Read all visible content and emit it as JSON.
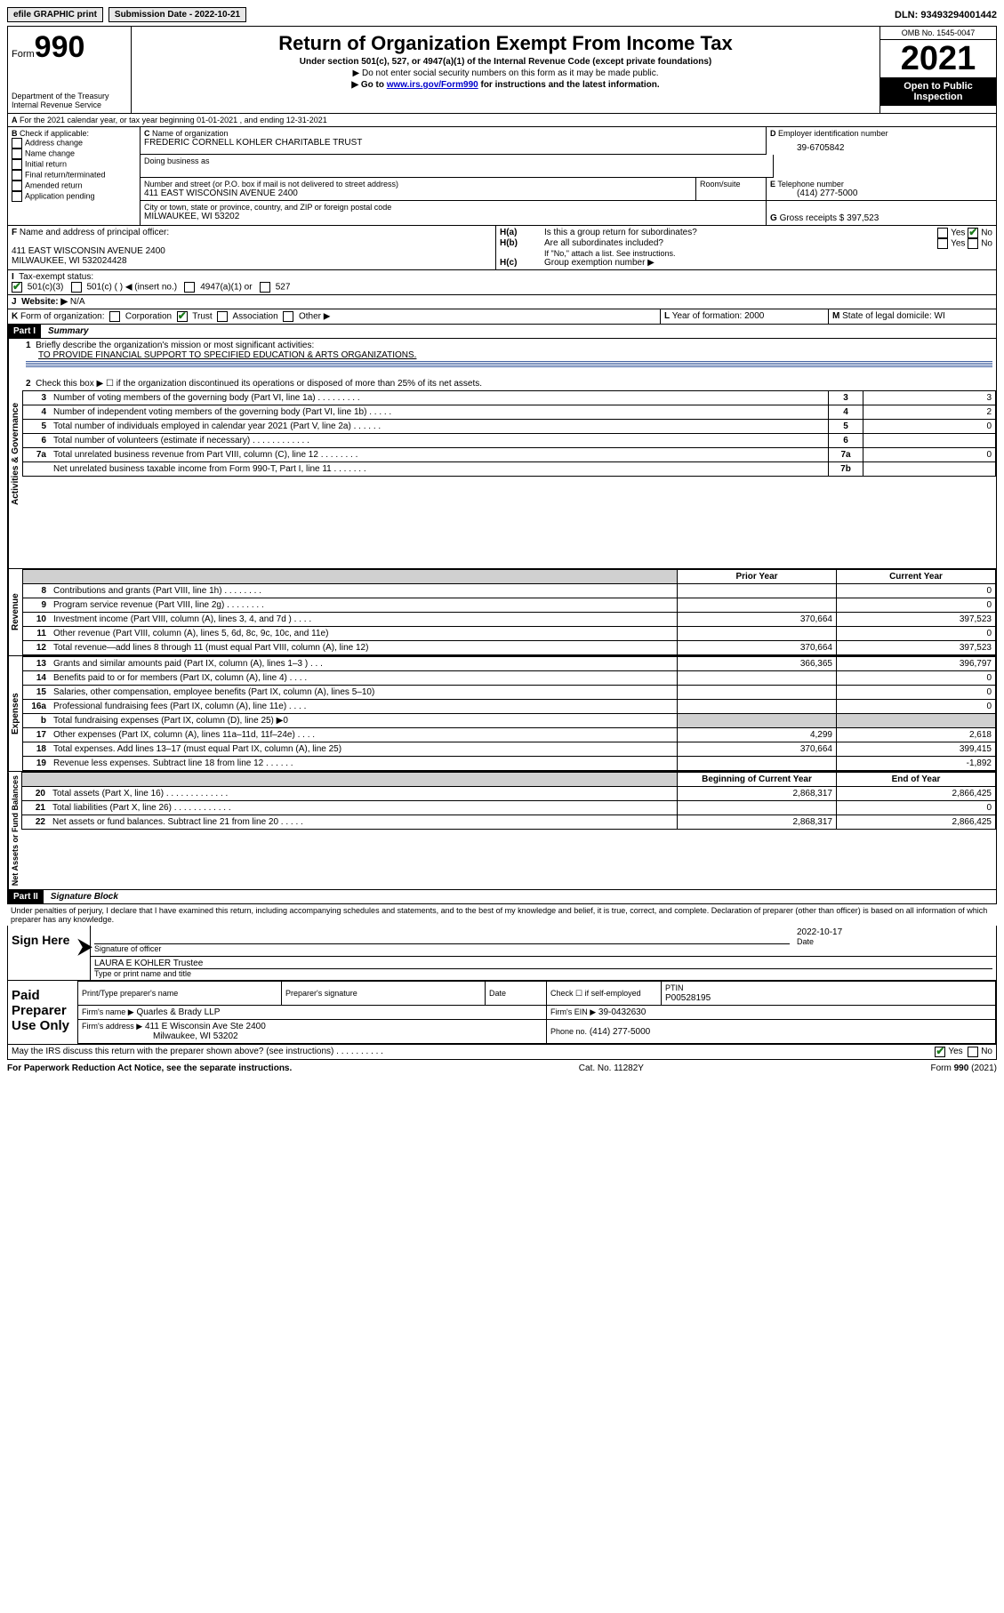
{
  "topbar": {
    "efile": "efile GRAPHIC print",
    "subdate_label": "Submission Date - 2022-10-21",
    "dln": "DLN: 93493294001442"
  },
  "header": {
    "form_label": "Form",
    "form_no": "990",
    "dept": "Department of the Treasury",
    "irs": "Internal Revenue Service",
    "title": "Return of Organization Exempt From Income Tax",
    "sub": "Under section 501(c), 527, or 4947(a)(1) of the Internal Revenue Code (except private foundations)",
    "note1": "▶ Do not enter social security numbers on this form as it may be made public.",
    "note2_pre": "▶ Go to ",
    "note2_link": "www.irs.gov/Form990",
    "note2_post": " for instructions and the latest information.",
    "omb": "OMB No. 1545-0047",
    "year": "2021",
    "pub": "Open to Public Inspection"
  },
  "A": {
    "line": "For the 2021 calendar year, or tax year beginning 01-01-2021   , and ending 12-31-2021"
  },
  "B": {
    "label": "Check if applicable:",
    "items": [
      "Address change",
      "Name change",
      "Initial return",
      "Final return/terminated",
      "Amended return",
      "Application pending"
    ]
  },
  "C": {
    "name_label": "Name of organization",
    "name": "FREDERIC CORNELL KOHLER CHARITABLE TRUST",
    "dba_label": "Doing business as",
    "addr_label": "Number and street (or P.O. box if mail is not delivered to street address)",
    "room_label": "Room/suite",
    "addr": "411 EAST WISCONSIN AVENUE 2400",
    "city_label": "City or town, state or province, country, and ZIP or foreign postal code",
    "city": "MILWAUKEE, WI  53202"
  },
  "D": {
    "label": "Employer identification number",
    "val": "39-6705842"
  },
  "E": {
    "label": "Telephone number",
    "val": "(414) 277-5000"
  },
  "G": {
    "label": "Gross receipts $",
    "val": "397,523"
  },
  "F": {
    "label": "Name and address of principal officer:",
    "addr1": "411 EAST WISCONSIN AVENUE 2400",
    "addr2": "MILWAUKEE, WI  532024428"
  },
  "H": {
    "a": "Is this a group return for subordinates?",
    "b": "Are all subordinates included?",
    "c_note": "If \"No,\" attach a list. See instructions.",
    "c": "Group exemption number ▶",
    "yes": "Yes",
    "no": "No"
  },
  "I": {
    "label": "Tax-exempt status:",
    "opts": [
      "501(c)(3)",
      "501(c) (  ) ◀ (insert no.)",
      "4947(a)(1) or",
      "527"
    ]
  },
  "J": {
    "label": "Website: ▶",
    "val": "N/A"
  },
  "K": {
    "label": "Form of organization:",
    "opts": [
      "Corporation",
      "Trust",
      "Association",
      "Other ▶"
    ]
  },
  "L": {
    "label": "Year of formation:",
    "val": "2000"
  },
  "M": {
    "label": "State of legal domicile:",
    "val": "WI"
  },
  "part1": {
    "hdr": "Part I",
    "title": "Summary",
    "q1": "Briefly describe the organization's mission or most significant activities:",
    "q1v": "TO PROVIDE FINANCIAL SUPPORT TO SPECIFIED EDUCATION & ARTS ORGANIZATIONS.",
    "q2": "Check this box ▶ ☐  if the organization discontinued its operations or disposed of more than 25% of its net assets.",
    "gov_rows": [
      {
        "n": "3",
        "t": "Number of voting members of the governing body (Part VI, line 1a)   .    .    .    .    .    .    .    .    .",
        "box": "3",
        "v": "3"
      },
      {
        "n": "4",
        "t": "Number of independent voting members of the governing body (Part VI, line 1b)   .    .    .    .    .",
        "box": "4",
        "v": "2"
      },
      {
        "n": "5",
        "t": "Total number of individuals employed in calendar year 2021 (Part V, line 2a)   .    .    .    .    .    .",
        "box": "5",
        "v": "0"
      },
      {
        "n": "6",
        "t": "Total number of volunteers (estimate if necessary)   .    .    .    .    .    .    .    .    .    .    .    .",
        "box": "6",
        "v": ""
      },
      {
        "n": "7a",
        "t": "Total unrelated business revenue from Part VIII, column (C), line 12   .    .    .    .    .    .    .    .",
        "box": "7a",
        "v": "0"
      },
      {
        "n": "",
        "t": "Net unrelated business taxable income from Form 990-T, Part I, line 11   .    .    .    .    .    .    .",
        "box": "7b",
        "v": ""
      }
    ],
    "col_py": "Prior Year",
    "col_cy": "Current Year",
    "rev_rows": [
      {
        "n": "8",
        "t": "Contributions and grants (Part VIII, line 1h)   .    .    .    .    .    .    .    .",
        "py": "",
        "cy": "0"
      },
      {
        "n": "9",
        "t": "Program service revenue (Part VIII, line 2g)   .    .    .    .    .    .    .    .",
        "py": "",
        "cy": "0"
      },
      {
        "n": "10",
        "t": "Investment income (Part VIII, column (A), lines 3, 4, and 7d )   .    .    .    .",
        "py": "370,664",
        "cy": "397,523"
      },
      {
        "n": "11",
        "t": "Other revenue (Part VIII, column (A), lines 5, 6d, 8c, 9c, 10c, and 11e)",
        "py": "",
        "cy": "0"
      },
      {
        "n": "12",
        "t": "Total revenue—add lines 8 through 11 (must equal Part VIII, column (A), line 12)",
        "py": "370,664",
        "cy": "397,523"
      }
    ],
    "exp_rows": [
      {
        "n": "13",
        "t": "Grants and similar amounts paid (Part IX, column (A), lines 1–3 )   .    .    .",
        "py": "366,365",
        "cy": "396,797"
      },
      {
        "n": "14",
        "t": "Benefits paid to or for members (Part IX, column (A), line 4)   .    .    .    .",
        "py": "",
        "cy": "0"
      },
      {
        "n": "15",
        "t": "Salaries, other compensation, employee benefits (Part IX, column (A), lines 5–10)",
        "py": "",
        "cy": "0"
      },
      {
        "n": "16a",
        "t": "Professional fundraising fees (Part IX, column (A), line 11e)   .    .    .    .",
        "py": "",
        "cy": "0"
      },
      {
        "n": "b",
        "t": "Total fundraising expenses (Part IX, column (D), line 25) ▶0",
        "py": "SHADE",
        "cy": "SHADE"
      },
      {
        "n": "17",
        "t": "Other expenses (Part IX, column (A), lines 11a–11d, 11f–24e)   .    .    .    .",
        "py": "4,299",
        "cy": "2,618"
      },
      {
        "n": "18",
        "t": "Total expenses. Add lines 13–17 (must equal Part IX, column (A), line 25)",
        "py": "370,664",
        "cy": "399,415"
      },
      {
        "n": "19",
        "t": "Revenue less expenses. Subtract line 18 from line 12   .    .    .    .    .    .",
        "py": "",
        "cy": "-1,892"
      }
    ],
    "col_boy": "Beginning of Current Year",
    "col_eoy": "End of Year",
    "na_rows": [
      {
        "n": "20",
        "t": "Total assets (Part X, line 16)   .    .    .    .    .    .    .    .    .    .    .    .    .",
        "py": "2,868,317",
        "cy": "2,866,425"
      },
      {
        "n": "21",
        "t": "Total liabilities (Part X, line 26)   .    .    .    .    .    .    .    .    .    .    .    .",
        "py": "",
        "cy": "0"
      },
      {
        "n": "22",
        "t": "Net assets or fund balances. Subtract line 21 from line 20   .    .    .    .    .",
        "py": "2,868,317",
        "cy": "2,866,425"
      }
    ]
  },
  "part2": {
    "hdr": "Part II",
    "title": "Signature Block",
    "decl": "Under penalties of perjury, I declare that I have examined this return, including accompanying schedules and statements, and to the best of my knowledge and belief, it is true, correct, and complete. Declaration of preparer (other than officer) is based on all information of which preparer has any knowledge.",
    "sign_here": "Sign Here",
    "sig_officer": "Signature of officer",
    "date": "Date",
    "date_v": "2022-10-17",
    "name_v": "LAURA E KOHLER  Trustee",
    "name_lbl": "Type or print name and title",
    "paid": "Paid Preparer Use Only",
    "pt_name": "Print/Type preparer's name",
    "pt_sig": "Preparer's signature",
    "pt_date": "Date",
    "pt_check": "Check ☐  if self-employed",
    "ptin_lbl": "PTIN",
    "ptin": "P00528195",
    "firm_name_lbl": "Firm's name    ▶",
    "firm_name": "Quarles & Brady LLP",
    "firm_ein_lbl": "Firm's EIN ▶",
    "firm_ein": "39-0432630",
    "firm_addr_lbl": "Firm's address ▶",
    "firm_addr1": "411 E Wisconsin Ave Ste 2400",
    "firm_addr2": "Milwaukee, WI  53202",
    "phone_lbl": "Phone no.",
    "phone": "(414) 277-5000",
    "may": "May the IRS discuss this return with the preparer shown above? (see instructions)   .    .    .    .    .    .    .    .    .    .",
    "yes": "Yes",
    "no": "No"
  },
  "footer": {
    "left": "For Paperwork Reduction Act Notice, see the separate instructions.",
    "mid": "Cat. No. 11282Y",
    "right": "Form 990 (2021)"
  },
  "labels": {
    "A": "A",
    "B": "B",
    "C": "C",
    "D": "D",
    "E": "E",
    "F": "F",
    "G": "G",
    "Ha": "H(a)",
    "Hb": "H(b)",
    "Hc": "H(c)",
    "I": "I",
    "J": "J",
    "K": "K",
    "L": "L",
    "M": "M",
    "activities": "Activities & Governance",
    "revenue": "Revenue",
    "expenses": "Expenses",
    "netassets": "Net Assets or Fund Balances",
    "b": "b"
  }
}
